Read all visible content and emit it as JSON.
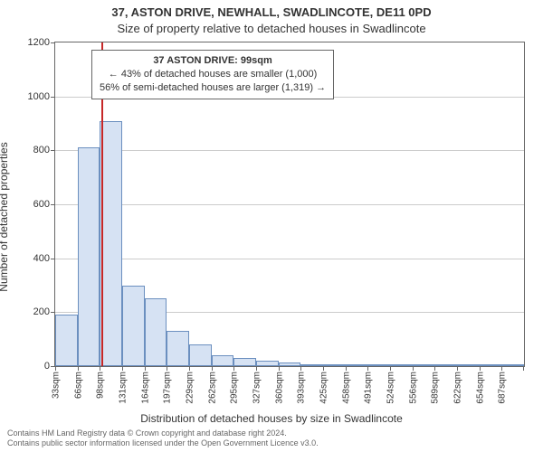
{
  "header": {
    "title": "37, ASTON DRIVE, NEWHALL, SWADLINCOTE, DE11 0PD",
    "subtitle": "Size of property relative to detached houses in Swadlincote"
  },
  "ylabel": "Number of detached properties",
  "xlabel": "Distribution of detached houses by size in Swadlincote",
  "chart": {
    "type": "histogram",
    "background_color": "#ffffff",
    "grid_color": "#cccccc",
    "axis_color": "#666666",
    "bar_fill": "#d6e2f3",
    "bar_border": "#6b8fbf",
    "bar_border_width": 1,
    "highlight_color": "#c62828",
    "ylim": [
      0,
      1200
    ],
    "ytick_step": 200,
    "xticks": [
      "33sqm",
      "66sqm",
      "98sqm",
      "131sqm",
      "164sqm",
      "197sqm",
      "229sqm",
      "262sqm",
      "295sqm",
      "327sqm",
      "360sqm",
      "393sqm",
      "425sqm",
      "458sqm",
      "491sqm",
      "524sqm",
      "556sqm",
      "589sqm",
      "622sqm",
      "654sqm",
      "687sqm"
    ],
    "bar_values": [
      190,
      810,
      910,
      300,
      250,
      130,
      80,
      40,
      30,
      20,
      12,
      8,
      5,
      5,
      4,
      3,
      3,
      2,
      2,
      2,
      2
    ],
    "highlight_bin_index": 2,
    "highlight_value_sqm": 99,
    "bar_width_ratio": 1.0
  },
  "annotation": {
    "line1": "37 ASTON DRIVE: 99sqm",
    "line2": "← 43% of detached houses are smaller (1,000)",
    "line3": "56% of semi-detached houses are larger (1,319) →"
  },
  "footer": {
    "line1": "Contains HM Land Registry data © Crown copyright and database right 2024.",
    "line2": "Contains public sector information licensed under the Open Government Licence v3.0."
  },
  "colors": {
    "text": "#333333",
    "footer_text": "#666666"
  }
}
